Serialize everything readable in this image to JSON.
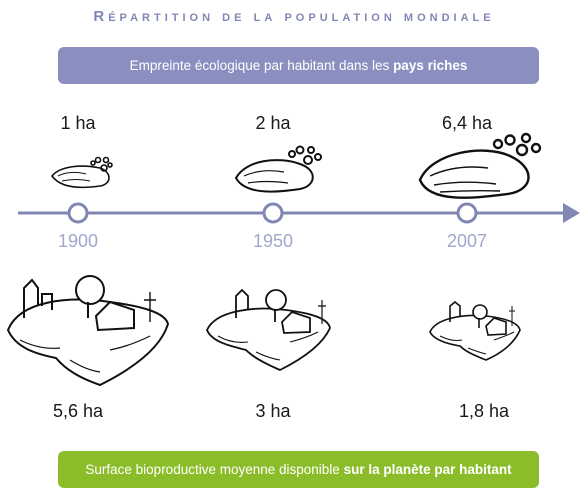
{
  "title": "Répartition de la population mondiale",
  "top_banner": {
    "text_before": "Empreinte écologique par habitant dans les ",
    "text_bold": "pays riches"
  },
  "footprints": [
    {
      "year": "1900",
      "value": "1 ha"
    },
    {
      "year": "1950",
      "value": "2 ha"
    },
    {
      "year": "2007",
      "value": "6,4 ha"
    }
  ],
  "surfaces": [
    {
      "year": "1900",
      "value": "5,6 ha"
    },
    {
      "year": "1950",
      "value": "3 ha"
    },
    {
      "year": "2007",
      "value": "1,8 ha"
    }
  ],
  "bottom_banner": {
    "text_before": "Surface bioproductive moyenne disponible ",
    "text_bold": "sur la planète par habitant"
  },
  "colors": {
    "accent_purple": "#8b8fc0",
    "accent_green": "#8bbd2a",
    "timeline": "#8087b4"
  }
}
